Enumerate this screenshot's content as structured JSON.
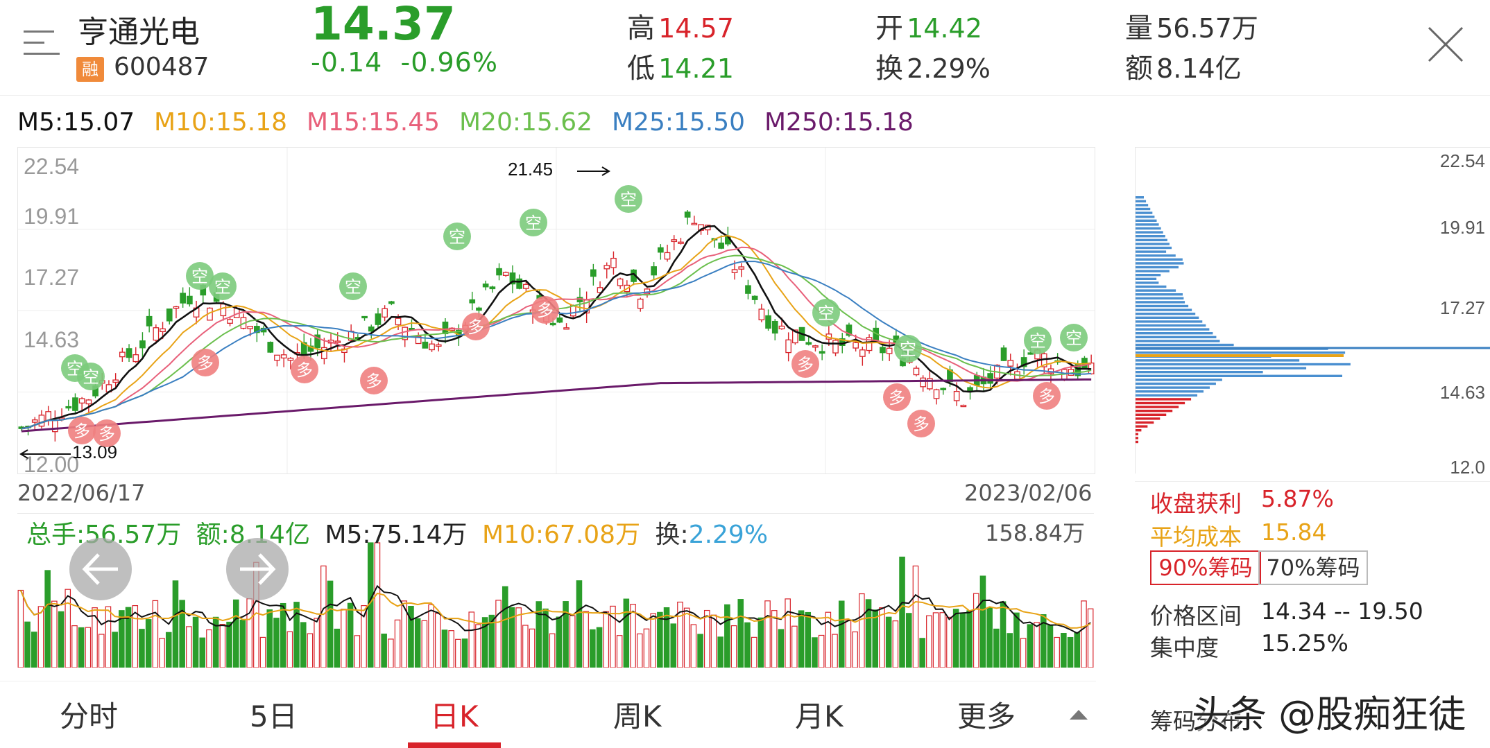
{
  "header": {
    "name": "亨通光电",
    "badge": "融",
    "code": "600487",
    "price": "14.37",
    "change": "-0.14",
    "change_pct": "-0.96%",
    "high_label": "高",
    "high": "14.57",
    "low_label": "低",
    "low": "14.21",
    "open_label": "开",
    "open": "14.42",
    "turnover_label": "换",
    "turnover": "2.29%",
    "volume_label": "量",
    "volume": "56.57万",
    "amount_label": "额",
    "amount": "8.14亿"
  },
  "ma": {
    "m5": "M5:15.07",
    "m10": "M10:15.18",
    "m15": "M15:15.45",
    "m20": "M20:15.62",
    "m25": "M25:15.50",
    "m250": "M250:15.18"
  },
  "kline": {
    "y_ticks": [
      "22.54",
      "19.91",
      "17.27",
      "14.63",
      "12.00"
    ],
    "y_range": [
      12.0,
      22.54
    ],
    "high_mark": "21.45",
    "low_mark": "13.09",
    "start_date": "2022/06/17",
    "end_date": "2023/02/06",
    "signal_long": "多",
    "signal_short": "空",
    "expand": "»"
  },
  "volume": {
    "total_label": "总手:56.57万",
    "amount_label": "额:8.14亿",
    "m5": "M5:75.14万",
    "m10": "M10:67.08万",
    "turnover_prefix": "换:",
    "turnover": "2.29%",
    "max": "158.84万"
  },
  "tabs": [
    "分时",
    "5日",
    "日K",
    "周K",
    "月K",
    "更多"
  ],
  "distribution": {
    "y_ticks": [
      "22.54",
      "19.91",
      "17.27",
      "14.63",
      "12.0"
    ],
    "profit_label": "收盘获利",
    "profit": "5.87%",
    "avg_cost_label": "平均成本",
    "avg_cost": "15.84",
    "btn90": "90%筹码",
    "btn70": "70%筹码",
    "range_label": "价格区间",
    "range": "14.34 -- 19.50",
    "conc_label": "集中度",
    "conc": "15.25%",
    "footer": "筹码分布"
  },
  "watermark": "头条 @股痴狂徒",
  "colors": {
    "up": "#d8232a",
    "down": "#2a9d2a",
    "ma5": "#111111",
    "ma10": "#e8a317",
    "ma15": "#e8607a",
    "ma20": "#6bbf4d",
    "ma25": "#3a7fc1",
    "ma250": "#6a1a6a"
  }
}
